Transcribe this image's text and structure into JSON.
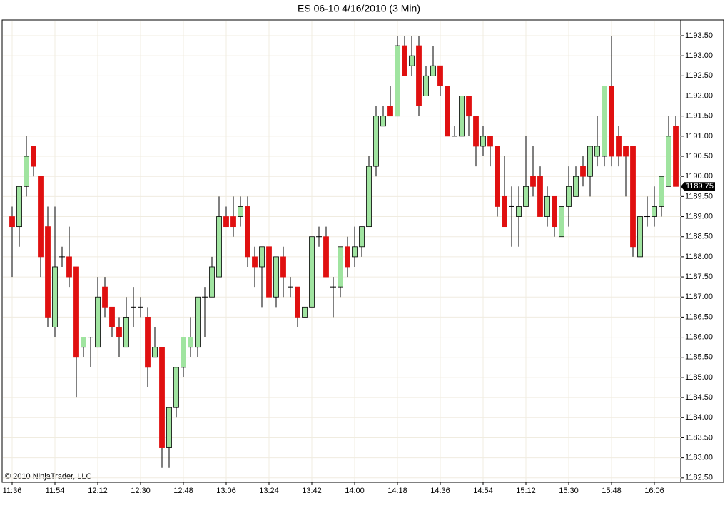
{
  "chart_data": {
    "type": "candlestick",
    "title": "ES 06-10  4/16/2010 (3 Min)",
    "copyright": "© 2010 NinjaTrader, LLC",
    "last_price": 1189.75,
    "up_color": "#a0e4a0",
    "down_color": "#e01010",
    "grid": true,
    "categories": [
      "11:36",
      null,
      null,
      null,
      null,
      null,
      "11:54",
      null,
      null,
      null,
      null,
      null,
      "12:12",
      null,
      null,
      null,
      null,
      null,
      "12:30",
      null,
      null,
      null,
      null,
      null,
      "12:48",
      null,
      null,
      null,
      null,
      null,
      "13:06",
      null,
      null,
      null,
      null,
      null,
      "13:24",
      null,
      null,
      null,
      null,
      null,
      "13:42",
      null,
      null,
      null,
      null,
      null,
      "14:00",
      null,
      null,
      null,
      null,
      null,
      "14:18",
      null,
      null,
      null,
      null,
      null,
      "14:36",
      null,
      null,
      null,
      null,
      null,
      "14:54",
      null,
      null,
      null,
      null,
      null,
      "15:12",
      null,
      null,
      null,
      null,
      null,
      "15:30",
      null,
      null,
      null,
      null,
      null,
      "15:48",
      null,
      null,
      null,
      null,
      null,
      "16:06",
      null,
      null,
      null
    ],
    "series": [
      {
        "name": "ES 06-10",
        "open": [
          1189,
          1188.75,
          1189.75,
          1190.75,
          1190,
          1188.75,
          1186.25,
          1188,
          1188,
          1187.75,
          1185.75,
          1186,
          1185.75,
          1187.25,
          1186.75,
          1186.25,
          1185.75,
          1186.75,
          1186.75,
          1186.5,
          1185.5,
          1185.75,
          1183.25,
          1184.25,
          1185.25,
          1185.75,
          1185.75,
          1187,
          1187,
          1187.5,
          1189,
          1189,
          1189,
          1189.25,
          1188,
          1187.75,
          1188.25,
          1187,
          1188,
          1187.25,
          1187.25,
          1186.5,
          1186.75,
          1188.5,
          1188.5,
          1187.25,
          1187.25,
          1188.25,
          1188,
          1188.25,
          1188.75,
          1190.25,
          1191.25,
          1191.75,
          1191.5,
          1193.25,
          1192.75,
          1193.25,
          1192,
          1192.5,
          1192.75,
          1192.25,
          1191,
          1191,
          1192,
          1191.5,
          1190.75,
          1191,
          1190.75,
          1189.5,
          1189.25,
          1189,
          1189.25,
          1190,
          1190,
          1189,
          1189.5,
          1188.5,
          1189.25,
          1189.5,
          1190.25,
          1190,
          1190.5,
          1190.5,
          1192.25,
          1191,
          1190.75,
          1190.75,
          1188,
          1189,
          1189,
          1189.25,
          1189.75,
          1191.25
        ],
        "high": [
          1189.25,
          1189.75,
          1191,
          1190.75,
          1190,
          1189.25,
          1189.25,
          1188.25,
          1188.75,
          1187.75,
          1186,
          1186,
          1187.5,
          1187.5,
          1186.75,
          1186.5,
          1187,
          1187.25,
          1187,
          1186.75,
          1186.25,
          1185.75,
          1184.25,
          1185.25,
          1186,
          1186.5,
          1187,
          1187.25,
          1188,
          1189.5,
          1189.25,
          1189.5,
          1189.5,
          1189.5,
          1188.25,
          1188.25,
          1188.25,
          1188,
          1188.25,
          1187.5,
          1187.25,
          1186.75,
          1188.5,
          1188.75,
          1188.75,
          1187.5,
          1188.25,
          1188.5,
          1188.75,
          1188.75,
          1190.5,
          1191.75,
          1191.75,
          1192.25,
          1193.5,
          1193.5,
          1193.5,
          1193.5,
          1192.75,
          1193.25,
          1192.75,
          1192.25,
          1191.25,
          1192,
          1192,
          1191.5,
          1191.25,
          1191,
          1190.75,
          1190.5,
          1189.75,
          1189.75,
          1191,
          1190.75,
          1190.25,
          1189.75,
          1189.5,
          1189.25,
          1190.25,
          1190.25,
          1190.5,
          1190.75,
          1191.5,
          1192.25,
          1193.5,
          1191.25,
          1190.75,
          1190.75,
          1189,
          1189.5,
          1189.75,
          1190,
          1191.5,
          1191.5
        ],
        "low": [
          1187.5,
          1188.25,
          1189.5,
          1190,
          1187.5,
          1186.25,
          1186,
          1187.75,
          1187.25,
          1184.5,
          1185.5,
          1185.25,
          1185.75,
          1186.5,
          1186,
          1185.5,
          1185.75,
          1186.25,
          1186.5,
          1184.75,
          1185.5,
          1182.75,
          1182.75,
          1184,
          1185,
          1185.5,
          1185.5,
          1186,
          1187,
          1187.5,
          1188.75,
          1188.5,
          1188.75,
          1187.75,
          1187.25,
          1186.75,
          1187,
          1186.75,
          1187,
          1187,
          1186.25,
          1186.5,
          1186.75,
          1188.25,
          1187.5,
          1186.5,
          1187,
          1187.5,
          1187.75,
          1188,
          1188.75,
          1190,
          1191.25,
          1191.5,
          1191.5,
          1192.5,
          1192.5,
          1191.5,
          1192,
          1192.5,
          1192,
          1191,
          1191,
          1191,
          1191,
          1190.25,
          1190.5,
          1190.25,
          1189,
          1188.75,
          1188.25,
          1188.25,
          1189.25,
          1189.5,
          1189,
          1188.75,
          1188.5,
          1188.5,
          1188.75,
          1189.5,
          1189.75,
          1189.5,
          1190.25,
          1190.25,
          1190.25,
          1190.25,
          1189.5,
          1188,
          1188,
          1188.75,
          1188.75,
          1189,
          1189.75,
          1189.75
        ],
        "close": [
          1188.75,
          1189.75,
          1190.5,
          1190.25,
          1188,
          1186.5,
          1187.75,
          1188,
          1187.5,
          1185.5,
          1186,
          1186,
          1187,
          1186.75,
          1186.25,
          1186,
          1186.5,
          1186.75,
          1186.75,
          1185.25,
          1185.75,
          1183.25,
          1184.25,
          1185.25,
          1186,
          1186,
          1187,
          1187,
          1187.75,
          1189,
          1188.75,
          1188.75,
          1189.25,
          1188,
          1187.75,
          1188.25,
          1187,
          1188,
          1187.5,
          1187.25,
          1186.5,
          1186.75,
          1188.5,
          1188.5,
          1187.5,
          1187.25,
          1188.25,
          1187.75,
          1188.25,
          1188.75,
          1190.25,
          1191.5,
          1191.5,
          1191.5,
          1193.25,
          1192.5,
          1193,
          1191.75,
          1192.5,
          1192.75,
          1192.25,
          1191,
          1191,
          1192,
          1191.5,
          1190.75,
          1191,
          1190.75,
          1189.25,
          1188.75,
          1189.25,
          1189.25,
          1189.75,
          1189.75,
          1189,
          1189.5,
          1188.75,
          1189.25,
          1189.75,
          1190,
          1190,
          1190.75,
          1190.75,
          1192.25,
          1190.5,
          1190.5,
          1190.5,
          1188.25,
          1189,
          1189,
          1189.25,
          1190,
          1191,
          1189.75
        ]
      }
    ],
    "ylim": [
      1182.39,
      1193.89
    ],
    "yticks": [
      {
        "value": 1182.5,
        "label": "1182.50"
      },
      {
        "value": 1183,
        "label": "1183.00"
      },
      {
        "value": 1183.5,
        "label": "1183.50"
      },
      {
        "value": 1184,
        "label": "1184.00"
      },
      {
        "value": 1184.5,
        "label": "1184.50"
      },
      {
        "value": 1185,
        "label": "1185.00"
      },
      {
        "value": 1185.5,
        "label": "1185.50"
      },
      {
        "value": 1186,
        "label": "1186.00"
      },
      {
        "value": 1186.5,
        "label": "1186.50"
      },
      {
        "value": 1187,
        "label": "1187.00"
      },
      {
        "value": 1187.5,
        "label": "1187.50"
      },
      {
        "value": 1188,
        "label": "1188.00"
      },
      {
        "value": 1188.5,
        "label": "1188.50"
      },
      {
        "value": 1189,
        "label": "1189.00"
      },
      {
        "value": 1189.5,
        "label": "1189.50"
      },
      {
        "value": 1190,
        "label": "1190.00"
      },
      {
        "value": 1190.5,
        "label": "1190.50"
      },
      {
        "value": 1191,
        "label": "1191.00"
      },
      {
        "value": 1191.5,
        "label": "1191.50"
      },
      {
        "value": 1192,
        "label": "1192.00"
      },
      {
        "value": 1192.5,
        "label": "1192.50"
      },
      {
        "value": 1193,
        "label": "1193.00"
      },
      {
        "value": 1193.5,
        "label": "1193.50"
      }
    ]
  }
}
